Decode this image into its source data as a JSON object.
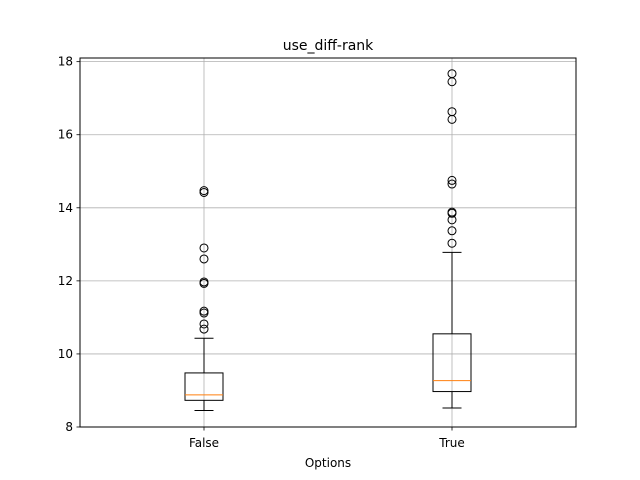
{
  "chart_data": {
    "type": "boxplot",
    "title": "use_diff-rank",
    "xlabel": "Options",
    "ylabel": "",
    "categories": [
      "False",
      "True"
    ],
    "ylim": [
      8.0,
      18.1
    ],
    "yticks": [
      8,
      10,
      12,
      14,
      16,
      18
    ],
    "grid": true,
    "colors": {
      "box": "#000000",
      "median": "#ff7f0e",
      "grid": "#b0b0b0"
    },
    "boxes": [
      {
        "label": "False",
        "whisker_low": 8.45,
        "q1": 8.73,
        "median": 8.88,
        "q3": 9.48,
        "whisker_high": 10.43,
        "outliers": [
          10.68,
          10.82,
          11.12,
          11.17,
          11.93,
          11.97,
          12.6,
          12.9,
          14.42,
          14.47
        ]
      },
      {
        "label": "True",
        "whisker_low": 8.52,
        "q1": 8.97,
        "median": 9.27,
        "q3": 10.55,
        "whisker_high": 12.78,
        "outliers": [
          13.03,
          13.37,
          13.67,
          13.85,
          13.88,
          14.65,
          14.75,
          16.42,
          16.63,
          17.45,
          17.67
        ]
      }
    ]
  }
}
